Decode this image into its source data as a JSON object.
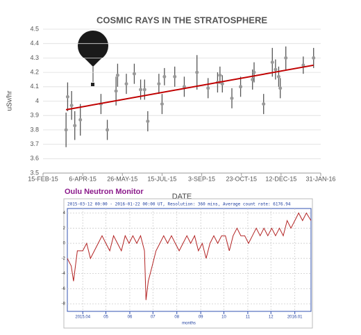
{
  "chart_data": [
    {
      "type": "scatter",
      "title": "COSMIC RAYS IN THE STRATOSPHERE",
      "x_label": "DATE",
      "y_label": "uSv/hr",
      "x": [
        "2015-03-16",
        "2015-03-18",
        "2015-03-23",
        "2015-03-27",
        "2015-04-03",
        "2015-04-29",
        "2015-05-07",
        "2015-05-18",
        "2015-05-20",
        "2015-05-31",
        "2015-06-10",
        "2015-06-18",
        "2015-06-23",
        "2015-06-27",
        "2015-07-11",
        "2015-07-15",
        "2015-07-18",
        "2015-07-31",
        "2015-08-12",
        "2015-08-28",
        "2015-09-11",
        "2015-09-23",
        "2015-09-26",
        "2015-09-29",
        "2015-10-11",
        "2015-10-22",
        "2015-11-06",
        "2015-11-08",
        "2015-11-20",
        "2015-12-01",
        "2015-12-05",
        "2015-12-09",
        "2015-12-11",
        "2015-12-18",
        "2016-01-09",
        "2016-01-22"
      ],
      "values": [
        3.8,
        4.03,
        3.97,
        3.83,
        3.87,
        3.98,
        3.8,
        4.07,
        4.18,
        4.12,
        4.19,
        4.08,
        4.08,
        3.86,
        4.12,
        3.98,
        4.17,
        4.17,
        4.1,
        4.2,
        4.09,
        4.13,
        4.18,
        4.12,
        4.02,
        4.1,
        4.15,
        4.2,
        3.98,
        4.27,
        4.22,
        4.17,
        4.09,
        4.3,
        4.25,
        4.3
      ],
      "errors": [
        0.12,
        0.1,
        0.1,
        0.1,
        0.11,
        0.07,
        0.07,
        0.1,
        0.08,
        0.07,
        0.07,
        0.07,
        0.07,
        0.07,
        0.07,
        0.07,
        0.06,
        0.07,
        0.07,
        0.12,
        0.07,
        0.07,
        0.06,
        0.06,
        0.07,
        0.07,
        0.07,
        0.07,
        0.07,
        0.1,
        0.07,
        0.07,
        0.07,
        0.08,
        0.06,
        0.07
      ],
      "color": "#999999",
      "error_color": "#555555",
      "trendline": {
        "x": [
          "2015-03-16",
          "2016-01-22"
        ],
        "values": [
          3.94,
          4.25
        ],
        "color": "#c00000"
      },
      "xlim": [
        "2015-02-15",
        "2016-01-31"
      ],
      "xticks": [
        {
          "value": "2015-02-15",
          "label": "15-FEB-15"
        },
        {
          "value": "2015-04-06",
          "label": "6-APR-15"
        },
        {
          "value": "2015-05-26",
          "label": "26-MAY-15"
        },
        {
          "value": "2015-07-15",
          "label": "15-JUL-15"
        },
        {
          "value": "2015-09-03",
          "label": "3-SEP-15"
        },
        {
          "value": "2015-10-23",
          "label": "23-OCT-15"
        },
        {
          "value": "2015-12-12",
          "label": "12-DEC-15"
        },
        {
          "value": "2016-01-31",
          "label": "31-JAN-16"
        }
      ],
      "ylim": [
        3.5,
        4.5
      ],
      "yticks": [
        3.5,
        3.6,
        3.7,
        3.8,
        3.9,
        4,
        4.1,
        4.2,
        4.3,
        4.4,
        4.5
      ],
      "grid": true
    },
    {
      "type": "line",
      "title": "Oulu Neutron Monitor",
      "subtitle": "2015-03-12 00:00 - 2016-01-22 00:00 UT, Resolution: 360 mins, Average count rate: 6176.94",
      "x_label": "months",
      "x": [
        "2015-03-12",
        "2015-03-17",
        "2015-03-20",
        "2015-03-25",
        "2015-04-01",
        "2015-04-06",
        "2015-04-11",
        "2015-04-16",
        "2015-04-21",
        "2015-04-26",
        "2015-05-01",
        "2015-05-06",
        "2015-05-11",
        "2015-05-16",
        "2015-05-21",
        "2015-05-26",
        "2015-05-31",
        "2015-06-05",
        "2015-06-10",
        "2015-06-15",
        "2015-06-20",
        "2015-06-22",
        "2015-06-25",
        "2015-06-30",
        "2015-07-05",
        "2015-07-10",
        "2015-07-15",
        "2015-07-20",
        "2015-07-25",
        "2015-07-30",
        "2015-08-04",
        "2015-08-09",
        "2015-08-14",
        "2015-08-19",
        "2015-08-24",
        "2015-08-29",
        "2015-09-03",
        "2015-09-08",
        "2015-09-13",
        "2015-09-18",
        "2015-09-23",
        "2015-09-28",
        "2015-10-03",
        "2015-10-08",
        "2015-10-13",
        "2015-10-18",
        "2015-10-23",
        "2015-10-28",
        "2015-11-02",
        "2015-11-07",
        "2015-11-12",
        "2015-11-17",
        "2015-11-22",
        "2015-11-27",
        "2015-12-02",
        "2015-12-07",
        "2015-12-12",
        "2015-12-17",
        "2015-12-22",
        "2015-12-27",
        "2016-01-01",
        "2016-01-06",
        "2016-01-11",
        "2016-01-16",
        "2016-01-22"
      ],
      "values": [
        -2,
        -3,
        -5,
        -1,
        -1,
        0,
        -2,
        -1,
        0,
        1,
        0,
        -1,
        1,
        0,
        -1,
        1,
        0,
        1,
        0,
        1,
        -1,
        -7.5,
        -5,
        -3,
        -1,
        0,
        1,
        0,
        1,
        0,
        -1,
        0,
        1,
        0,
        1,
        -1,
        0,
        -2,
        0,
        1,
        0,
        1,
        1,
        -1,
        1,
        2,
        1,
        1,
        0,
        1,
        2,
        1,
        2,
        1,
        2,
        1,
        2,
        1,
        3,
        2,
        3,
        4,
        3,
        4,
        3
      ],
      "color": "#b22222",
      "xlim": [
        "2015-03-12",
        "2016-01-22"
      ],
      "xticks": [
        {
          "value": "2015-04-01",
          "label": "2015.04"
        },
        {
          "value": "2015-05-01",
          "label": "05"
        },
        {
          "value": "2015-06-01",
          "label": "06"
        },
        {
          "value": "2015-07-01",
          "label": "07"
        },
        {
          "value": "2015-08-01",
          "label": "08"
        },
        {
          "value": "2015-09-01",
          "label": "09"
        },
        {
          "value": "2015-10-01",
          "label": "10"
        },
        {
          "value": "2015-11-01",
          "label": "11"
        },
        {
          "value": "2015-12-01",
          "label": "12"
        },
        {
          "value": "2016-01-01",
          "label": "2016.01"
        }
      ],
      "ylim": [
        -9,
        4.6
      ],
      "yticks": [
        4,
        2,
        0,
        -2,
        -4,
        -6,
        -8
      ],
      "grid": true
    }
  ]
}
